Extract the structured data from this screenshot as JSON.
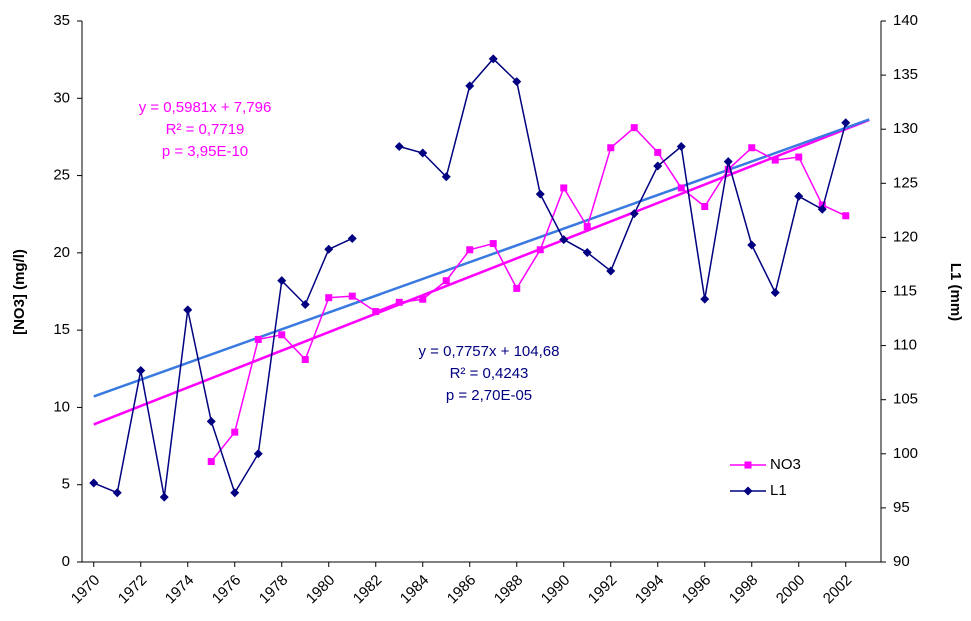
{
  "chart_data": {
    "type": "line",
    "y_label": "[NO3] (mg/l)",
    "y2_label": "L1 (mm)",
    "x": [
      1970,
      1971,
      1972,
      1973,
      1974,
      1975,
      1976,
      1977,
      1978,
      1979,
      1980,
      1981,
      1982,
      1983,
      1984,
      1985,
      1986,
      1987,
      1988,
      1989,
      1990,
      1991,
      1992,
      1993,
      1994,
      1995,
      1996,
      1997,
      1998,
      1999,
      2000,
      2001,
      2002
    ],
    "xlim": [
      1969.5,
      2003.5
    ],
    "xticks": [
      1970,
      1972,
      1974,
      1976,
      1978,
      1980,
      1982,
      1984,
      1986,
      1988,
      1990,
      1992,
      1994,
      1996,
      1998,
      2000,
      2002
    ],
    "ylim": [
      0,
      35
    ],
    "yticks": [
      0,
      5,
      10,
      15,
      20,
      25,
      30,
      35
    ],
    "y2lim": [
      90,
      140
    ],
    "y2ticks": [
      90,
      95,
      100,
      105,
      110,
      115,
      120,
      125,
      130,
      135,
      140
    ],
    "series": [
      {
        "name": "NO3",
        "color": "#ff00ff",
        "marker": "square",
        "axis": "y",
        "values": [
          null,
          null,
          null,
          null,
          null,
          6.5,
          8.4,
          14.4,
          14.7,
          13.1,
          17.1,
          17.2,
          16.2,
          16.8,
          17.0,
          18.2,
          20.2,
          20.6,
          17.7,
          20.2,
          24.2,
          21.7,
          26.8,
          28.1,
          26.5,
          24.2,
          23.0,
          25.4,
          26.8,
          26.0,
          26.2,
          23.1,
          22.4
        ]
      },
      {
        "name": "L1",
        "color": "#000080",
        "marker": "diamond",
        "axis": "y2",
        "values": [
          97.3,
          96.4,
          107.7,
          96.0,
          113.3,
          103.0,
          96.4,
          100.0,
          116.0,
          113.8,
          118.9,
          119.9,
          null,
          128.4,
          127.8,
          125.6,
          134.0,
          136.5,
          134.4,
          124.0,
          119.8,
          118.6,
          116.9,
          122.2,
          126.6,
          128.4,
          114.3,
          127.0,
          119.3,
          114.9,
          123.8,
          122.6,
          130.6
        ]
      }
    ],
    "trendlines": [
      {
        "color": "#ff00ff",
        "axis": "y",
        "x": [
          1970,
          2003
        ],
        "values": [
          8.9,
          28.6
        ]
      },
      {
        "color": "#3a7ae0",
        "axis": "y2",
        "x": [
          1970,
          2003
        ],
        "values": [
          105.3,
          130.9
        ]
      }
    ],
    "annotations": [
      {
        "color": "#ff00ff",
        "lines": [
          "y = 0,5981x + 7,796",
          "R² = 0,7719",
          "p = 3,95E-10"
        ]
      },
      {
        "color": "#000080",
        "lines": [
          "y = 0,7757x + 104,68",
          "R² = 0,4243",
          "p = 2,70E-05"
        ]
      }
    ],
    "legend": "lower right"
  }
}
